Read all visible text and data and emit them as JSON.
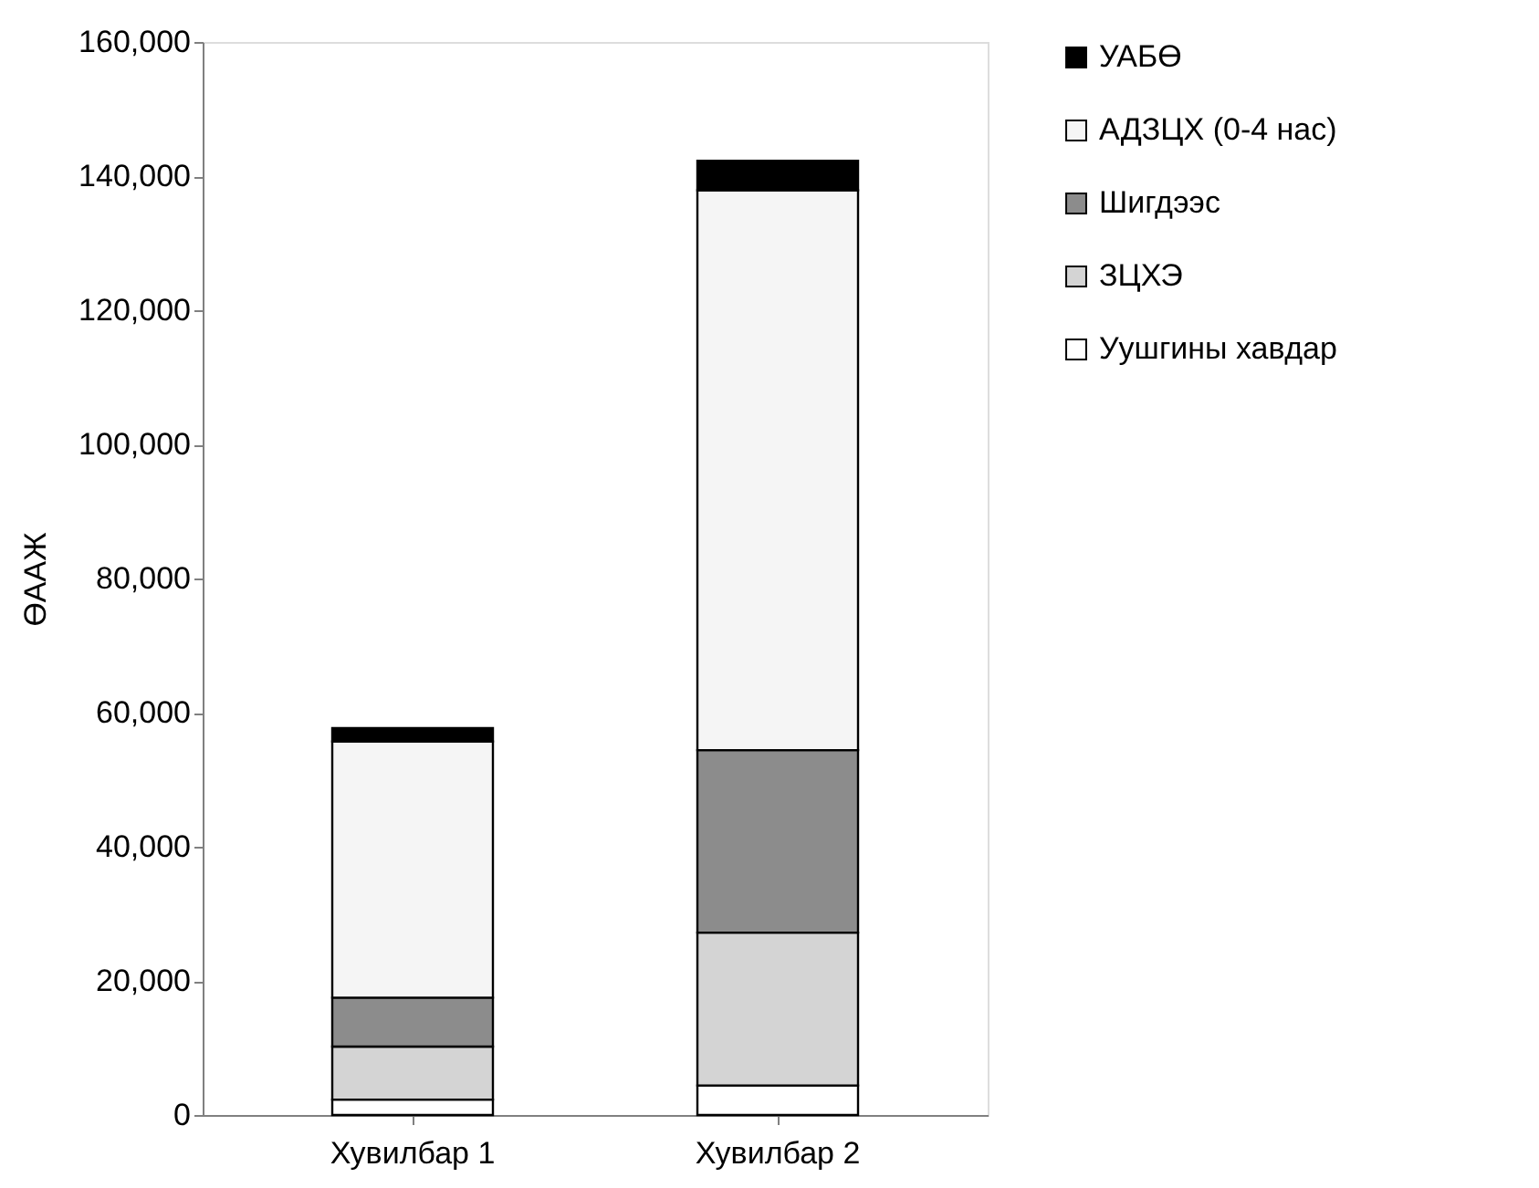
{
  "chart_data": {
    "type": "bar",
    "stacked": true,
    "ylabel": "ӨААЖ",
    "categories": [
      "Хувилбар 1",
      "Хувилбар 2"
    ],
    "series": [
      {
        "name": "Уушгины хавдар",
        "color": "#ffffff",
        "values": [
          2300,
          4400
        ]
      },
      {
        "name": "ЗЦХЭ",
        "color": "#d4d4d4",
        "values": [
          7900,
          22800
        ]
      },
      {
        "name": "Шигдээс",
        "color": "#8c8c8c",
        "values": [
          7300,
          27200
        ]
      },
      {
        "name": "АДЗЦХ (0-4 нас)",
        "color": "#f5f5f5",
        "values": [
          38200,
          83500
        ]
      },
      {
        "name": "УАБӨ",
        "color": "#000000",
        "values": [
          2000,
          4400
        ]
      }
    ],
    "ylim": [
      0,
      160000
    ],
    "yticks": [
      0,
      {
        "value": 20000,
        "label": "20,000"
      },
      {
        "value": 40000,
        "label": "40,000"
      },
      {
        "value": 60000,
        "label": "60,000"
      },
      {
        "value": 80000,
        "label": "80,000"
      },
      {
        "value": 100000,
        "label": "100,000"
      },
      {
        "value": 120000,
        "label": "120,000"
      },
      {
        "value": 140000,
        "label": "140,000"
      },
      {
        "value": 160000,
        "label": "160,000"
      }
    ],
    "grid": false,
    "legend": "top right"
  }
}
